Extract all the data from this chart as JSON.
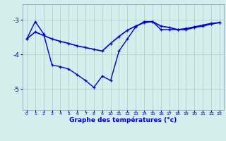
{
  "title": "Graphe des températures (°c)",
  "bg_color": "#d4eeed",
  "grid_color": "#b0cecc",
  "line_color": "#0000cc",
  "x_ticks": [
    0,
    1,
    2,
    3,
    4,
    5,
    6,
    7,
    8,
    9,
    10,
    11,
    12,
    13,
    14,
    15,
    16,
    17,
    18,
    19,
    20,
    21,
    22,
    23
  ],
  "ylim": [
    -5.6,
    -2.55
  ],
  "yticks": [
    -5,
    -4,
    -3
  ],
  "line1_x": [
    0,
    1,
    2,
    3,
    4,
    5,
    6,
    7,
    8,
    9,
    10,
    11,
    12,
    13,
    14,
    15,
    16,
    17,
    18,
    19,
    20,
    21,
    22,
    23
  ],
  "line1_y": [
    -3.55,
    -3.35,
    -3.45,
    -3.55,
    -3.62,
    -3.68,
    -3.75,
    -3.8,
    -3.85,
    -3.9,
    -3.68,
    -3.48,
    -3.3,
    -3.18,
    -3.08,
    -3.05,
    -3.18,
    -3.22,
    -3.28,
    -3.28,
    -3.22,
    -3.18,
    -3.12,
    -3.08
  ],
  "line2_x": [
    0,
    1,
    2,
    3,
    4,
    5,
    6,
    7,
    8,
    9,
    10,
    11,
    12,
    13,
    14,
    15,
    16,
    17,
    18,
    19,
    20,
    21,
    22,
    23
  ],
  "line2_y": [
    -3.55,
    -3.05,
    -3.4,
    -4.3,
    -4.35,
    -4.42,
    -4.58,
    -4.75,
    -4.95,
    -4.62,
    -4.75,
    -3.9,
    -3.55,
    -3.2,
    -3.05,
    -3.05,
    -3.28,
    -3.28,
    -3.28,
    -3.25,
    -3.2,
    -3.15,
    -3.1,
    -3.08
  ]
}
